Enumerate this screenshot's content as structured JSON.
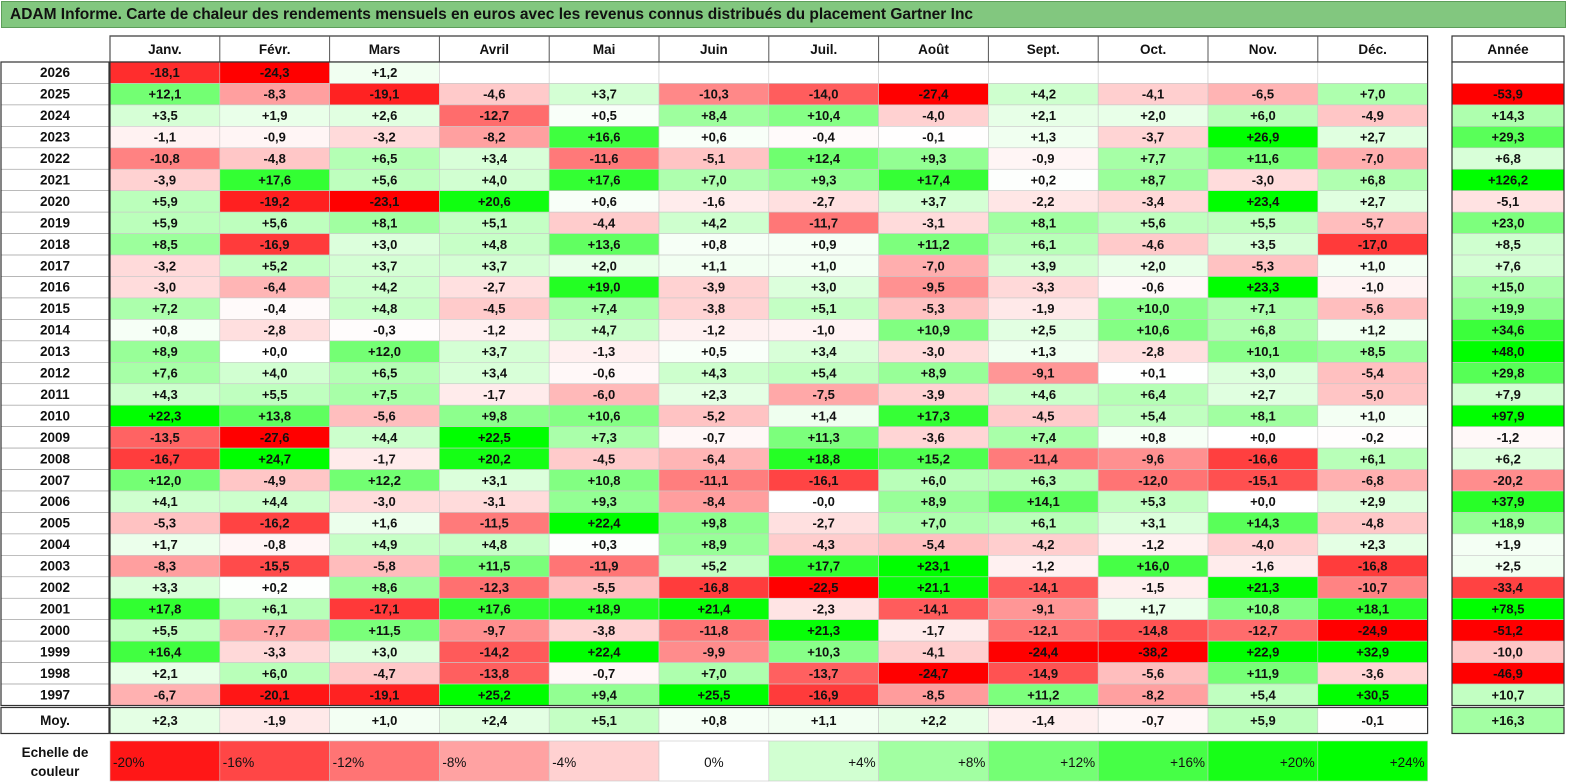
{
  "title": "ADAM Informe. Carte de chaleur des rendements mensuels en euros avec les revenus connus distribués du placement Gartner Inc",
  "chart_data": {
    "type": "heatmap",
    "title": "ADAM Informe. Carte de chaleur des rendements mensuels en euros avec les revenus connus distribués du placement Gartner Inc",
    "months": [
      "Janv.",
      "Févr.",
      "Mars",
      "Avril",
      "Mai",
      "Juin",
      "Juil.",
      "Août",
      "Sept.",
      "Oct.",
      "Nov.",
      "Déc."
    ],
    "year_header": "Année",
    "rows": [
      {
        "label": "2026",
        "values": [
          "-18,1",
          "-24,3",
          "+1,2",
          "",
          "",
          "",
          "",
          "",
          "",
          "",
          "",
          ""
        ],
        "annual": ""
      },
      {
        "label": "2025",
        "values": [
          "+12,1",
          "-8,3",
          "-19,1",
          "-4,6",
          "+3,7",
          "-10,3",
          "-14,0",
          "-27,4",
          "+4,2",
          "-4,1",
          "-6,5",
          "+7,0"
        ],
        "annual": "-53,9"
      },
      {
        "label": "2024",
        "values": [
          "+3,5",
          "+1,9",
          "+2,6",
          "-12,7",
          "+0,5",
          "+8,4",
          "+10,4",
          "-4,0",
          "+2,1",
          "+2,0",
          "+6,0",
          "-4,9"
        ],
        "annual": "+14,3"
      },
      {
        "label": "2023",
        "values": [
          "-1,1",
          "-0,9",
          "-3,2",
          "-8,2",
          "+16,6",
          "+0,6",
          "-0,4",
          "-0,1",
          "+1,3",
          "-3,7",
          "+26,9",
          "+2,7"
        ],
        "annual": "+29,3"
      },
      {
        "label": "2022",
        "values": [
          "-10,8",
          "-4,8",
          "+6,5",
          "+3,4",
          "-11,6",
          "-5,1",
          "+12,4",
          "+9,3",
          "-0,9",
          "+7,7",
          "+11,6",
          "-7,0"
        ],
        "annual": "+6,8"
      },
      {
        "label": "2021",
        "values": [
          "-3,9",
          "+17,6",
          "+5,6",
          "+4,0",
          "+17,6",
          "+7,0",
          "+9,3",
          "+17,4",
          "+0,2",
          "+8,7",
          "-3,0",
          "+6,8"
        ],
        "annual": "+126,2"
      },
      {
        "label": "2020",
        "values": [
          "+5,9",
          "-19,2",
          "-23,1",
          "+20,6",
          "+0,6",
          "-1,6",
          "-2,7",
          "+3,7",
          "-2,2",
          "-3,4",
          "+23,4",
          "+2,7"
        ],
        "annual": "-5,1"
      },
      {
        "label": "2019",
        "values": [
          "+5,9",
          "+5,6",
          "+8,1",
          "+5,1",
          "-4,4",
          "+4,2",
          "-11,7",
          "-3,1",
          "+8,1",
          "+5,6",
          "+5,5",
          "-5,7"
        ],
        "annual": "+23,0"
      },
      {
        "label": "2018",
        "values": [
          "+8,5",
          "-16,9",
          "+3,0",
          "+4,8",
          "+13,6",
          "+0,8",
          "+0,9",
          "+11,2",
          "+6,1",
          "-4,6",
          "+3,5",
          "-17,0"
        ],
        "annual": "+8,5"
      },
      {
        "label": "2017",
        "values": [
          "-3,2",
          "+5,2",
          "+3,7",
          "+3,7",
          "+2,0",
          "+1,1",
          "+1,0",
          "-7,0",
          "+3,9",
          "+2,0",
          "-5,3",
          "+1,0"
        ],
        "annual": "+7,6"
      },
      {
        "label": "2016",
        "values": [
          "-3,0",
          "-6,4",
          "+4,2",
          "-2,7",
          "+19,0",
          "-3,9",
          "+3,0",
          "-9,5",
          "-3,3",
          "-0,6",
          "+23,3",
          "-1,0"
        ],
        "annual": "+15,0"
      },
      {
        "label": "2015",
        "values": [
          "+7,2",
          "-0,4",
          "+4,8",
          "-4,5",
          "+7,4",
          "-3,8",
          "+5,1",
          "-5,3",
          "-1,9",
          "+10,0",
          "+7,1",
          "-5,6"
        ],
        "annual": "+19,9"
      },
      {
        "label": "2014",
        "values": [
          "+0,8",
          "-2,8",
          "-0,3",
          "-1,2",
          "+4,7",
          "-1,2",
          "-1,0",
          "+10,9",
          "+2,5",
          "+10,6",
          "+6,8",
          "+1,2"
        ],
        "annual": "+34,6"
      },
      {
        "label": "2013",
        "values": [
          "+8,9",
          "+0,0",
          "+12,0",
          "+3,7",
          "-1,3",
          "+0,5",
          "+3,4",
          "-3,0",
          "+1,3",
          "-2,8",
          "+10,1",
          "+8,5"
        ],
        "annual": "+48,0"
      },
      {
        "label": "2012",
        "values": [
          "+7,6",
          "+4,0",
          "+6,5",
          "+3,4",
          "-0,6",
          "+4,3",
          "+5,4",
          "+8,9",
          "-9,1",
          "+0,1",
          "+3,0",
          "-5,4"
        ],
        "annual": "+29,8"
      },
      {
        "label": "2011",
        "values": [
          "+4,3",
          "+5,5",
          "+7,5",
          "-1,7",
          "-6,0",
          "+2,3",
          "-7,5",
          "-3,9",
          "+4,6",
          "+6,4",
          "+2,7",
          "-5,0"
        ],
        "annual": "+7,9"
      },
      {
        "label": "2010",
        "values": [
          "+22,3",
          "+13,8",
          "-5,6",
          "+9,8",
          "+10,6",
          "-5,2",
          "+1,4",
          "+17,3",
          "-4,5",
          "+5,4",
          "+8,1",
          "+1,0"
        ],
        "annual": "+97,9"
      },
      {
        "label": "2009",
        "values": [
          "-13,5",
          "-27,6",
          "+4,4",
          "+22,5",
          "+7,3",
          "-0,7",
          "+11,3",
          "-3,6",
          "+7,4",
          "+0,8",
          "+0,0",
          "-0,2"
        ],
        "annual": "-1,2"
      },
      {
        "label": "2008",
        "values": [
          "-16,7",
          "+24,7",
          "-1,7",
          "+20,2",
          "-4,5",
          "-6,4",
          "+18,8",
          "+15,2",
          "-11,4",
          "-9,6",
          "-16,6",
          "+6,1"
        ],
        "annual": "+6,2"
      },
      {
        "label": "2007",
        "values": [
          "+12,0",
          "-4,9",
          "+12,2",
          "+3,1",
          "+10,8",
          "-11,1",
          "-16,1",
          "+6,0",
          "+6,3",
          "-12,0",
          "-15,1",
          "-6,8"
        ],
        "annual": "-20,2"
      },
      {
        "label": "2006",
        "values": [
          "+4,1",
          "+4,4",
          "-3,0",
          "-3,1",
          "+9,3",
          "-8,4",
          "-0,0",
          "+8,9",
          "+14,1",
          "+5,3",
          "+0,0",
          "+2,9"
        ],
        "annual": "+37,9"
      },
      {
        "label": "2005",
        "values": [
          "-5,3",
          "-16,2",
          "+1,6",
          "-11,5",
          "+22,4",
          "+9,8",
          "-2,7",
          "+7,0",
          "+6,1",
          "+3,1",
          "+14,3",
          "-4,8"
        ],
        "annual": "+18,9"
      },
      {
        "label": "2004",
        "values": [
          "+1,7",
          "-0,8",
          "+4,9",
          "+4,8",
          "+0,3",
          "+8,9",
          "-4,3",
          "-5,4",
          "-4,2",
          "-1,2",
          "-4,0",
          "+2,3"
        ],
        "annual": "+1,9"
      },
      {
        "label": "2003",
        "values": [
          "-8,3",
          "-15,5",
          "-5,8",
          "+11,5",
          "-11,9",
          "+5,2",
          "+17,7",
          "+23,1",
          "-1,2",
          "+16,0",
          "-1,6",
          "-16,8"
        ],
        "annual": "+2,5"
      },
      {
        "label": "2002",
        "values": [
          "+3,3",
          "+0,2",
          "+8,6",
          "-12,3",
          "-5,5",
          "-16,8",
          "-22,5",
          "+21,1",
          "-14,1",
          "-1,5",
          "+21,3",
          "-10,7"
        ],
        "annual": "-33,4"
      },
      {
        "label": "2001",
        "values": [
          "+17,8",
          "+6,1",
          "-17,1",
          "+17,6",
          "+18,9",
          "+21,4",
          "-2,3",
          "-14,1",
          "-9,1",
          "+1,7",
          "+10,8",
          "+18,1"
        ],
        "annual": "+78,5"
      },
      {
        "label": "2000",
        "values": [
          "+5,5",
          "-7,7",
          "+11,5",
          "-9,7",
          "-3,8",
          "-11,8",
          "+21,3",
          "-1,7",
          "-12,1",
          "-14,8",
          "-12,7",
          "-24,9"
        ],
        "annual": "-51,2"
      },
      {
        "label": "1999",
        "values": [
          "+16,4",
          "-3,3",
          "+3,0",
          "-14,2",
          "+22,4",
          "-9,9",
          "+10,3",
          "-4,1",
          "-24,4",
          "-38,2",
          "+22,9",
          "+32,9"
        ],
        "annual": "-10,0"
      },
      {
        "label": "1998",
        "values": [
          "+2,1",
          "+6,0",
          "-4,7",
          "-13,8",
          "-0,7",
          "+7,0",
          "-13,7",
          "-24,7",
          "-14,9",
          "-5,6",
          "+11,9",
          "-3,6"
        ],
        "annual": "-46,9"
      },
      {
        "label": "1997",
        "values": [
          "-6,7",
          "-20,1",
          "-19,1",
          "+25,2",
          "+9,4",
          "+25,5",
          "-16,9",
          "-8,5",
          "+11,2",
          "-8,2",
          "+5,4",
          "+30,5"
        ],
        "annual": "+10,7"
      }
    ],
    "average": {
      "label": "Moy.",
      "values": [
        "+2,3",
        "-1,9",
        "+1,0",
        "+2,4",
        "+5,1",
        "+0,8",
        "+1,1",
        "+2,2",
        "-1,4",
        "-0,7",
        "+5,9",
        "-0,1"
      ],
      "annual": "+16,3"
    },
    "scale": {
      "label_line1": "Echelle de",
      "label_line2": "couleur",
      "steps": [
        "-20%",
        "-16%",
        "-12%",
        "-8%",
        "-4%",
        "0%",
        "+4%",
        "+8%",
        "+12%",
        "+16%",
        "+20%",
        "+24%"
      ],
      "step_values": [
        -20,
        -16,
        -12,
        -8,
        -4,
        0,
        4,
        8,
        12,
        16,
        20,
        24
      ]
    },
    "colors": {
      "negative_max": "#ff0000",
      "neutral": "#ffffff",
      "positive_max": "#00ff00",
      "title_bg": "#82c77f"
    }
  }
}
